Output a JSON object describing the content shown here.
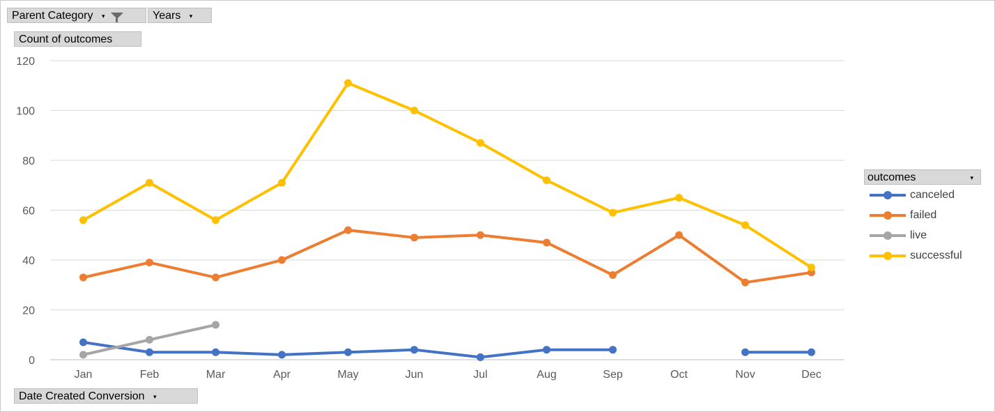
{
  "filters": {
    "parent_category": "Parent Category",
    "years": "Years",
    "value_field": "Count of outcomes",
    "axis_field": "Date Created Conversion"
  },
  "legend": {
    "title": "outcomes"
  },
  "chart_data": {
    "type": "line",
    "categories": [
      "Jan",
      "Feb",
      "Mar",
      "Apr",
      "May",
      "Jun",
      "Jul",
      "Aug",
      "Sep",
      "Oct",
      "Nov",
      "Dec"
    ],
    "ylim": [
      0,
      120
    ],
    "yticks": [
      0,
      20,
      40,
      60,
      80,
      100,
      120
    ],
    "grid": true,
    "legend_position": "right",
    "series": [
      {
        "name": "canceled",
        "color": "#4472C4",
        "values": [
          7,
          3,
          3,
          2,
          3,
          4,
          1,
          4,
          4,
          null,
          3,
          3
        ]
      },
      {
        "name": "failed",
        "color": "#ED7D31",
        "values": [
          33,
          39,
          33,
          40,
          52,
          49,
          50,
          47,
          34,
          50,
          31,
          35
        ]
      },
      {
        "name": "live",
        "color": "#A5A5A5",
        "values": [
          2,
          8,
          14,
          null,
          null,
          null,
          null,
          null,
          null,
          null,
          null,
          null
        ]
      },
      {
        "name": "successful",
        "color": "#FFC000",
        "values": [
          56,
          71,
          56,
          71,
          111,
          100,
          87,
          72,
          59,
          65,
          54,
          37
        ]
      }
    ]
  }
}
